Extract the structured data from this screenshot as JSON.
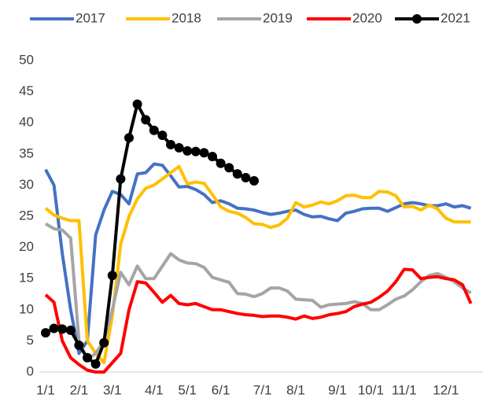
{
  "chart_data": {
    "type": "line",
    "categories": [
      "1/1",
      null,
      null,
      null,
      "2/1",
      null,
      null,
      null,
      "3/1",
      null,
      null,
      null,
      null,
      "4/1",
      null,
      null,
      null,
      "5/1",
      null,
      null,
      null,
      "6/1",
      null,
      null,
      null,
      null,
      "7/1",
      null,
      null,
      null,
      "8/1",
      null,
      null,
      null,
      null,
      "9/1",
      null,
      null,
      null,
      "10/1",
      null,
      null,
      null,
      "11/1",
      null,
      null,
      null,
      null,
      "12/1",
      null,
      null,
      null
    ],
    "ylim": [
      0,
      50
    ],
    "yticks": [
      0,
      5,
      10,
      15,
      20,
      25,
      30,
      35,
      40,
      45,
      50
    ],
    "grid": false,
    "legend": "top",
    "series": [
      {
        "name": "2017",
        "color": "#4472c4",
        "marker": false,
        "values": [
          32.5,
          30,
          19,
          10,
          3,
          5,
          22,
          26,
          29,
          28.5,
          27,
          31.8,
          32,
          33.4,
          33.2,
          31.5,
          29.7,
          29.8,
          29.3,
          28.5,
          27.2,
          27.5,
          27,
          26.3,
          26.2,
          26,
          25.6,
          25.3,
          25.5,
          25.8,
          26,
          25.3,
          24.9,
          25,
          24.6,
          24.3,
          25.5,
          25.8,
          26.2,
          26.3,
          26.3,
          25.8,
          26.4,
          27,
          27.2,
          27,
          26.7,
          26.7,
          27,
          26.5,
          26.7,
          26.3
        ]
      },
      {
        "name": "2018",
        "color": "#ffc000",
        "marker": false,
        "values": [
          26.3,
          25.2,
          24.7,
          24.3,
          24.3,
          5,
          3,
          1.5,
          9,
          20.5,
          25,
          27.8,
          29.5,
          30,
          31,
          32,
          33,
          30.2,
          30.5,
          30.3,
          28.5,
          26.5,
          25.8,
          25.5,
          24.8,
          23.8,
          23.7,
          23.2,
          23.6,
          24.7,
          27.2,
          26.5,
          26.8,
          27.3,
          27,
          27.5,
          28.3,
          28.4,
          28,
          28,
          29,
          28.9,
          28.3,
          26.5,
          26.6,
          26,
          26.8,
          26.2,
          24.7,
          24.1,
          24.1,
          24.1
        ]
      },
      {
        "name": "2019",
        "color": "#a5a5a5",
        "marker": false,
        "values": [
          23.8,
          23,
          22.8,
          21.5,
          5,
          2,
          3,
          5,
          10,
          16,
          14,
          17,
          15,
          15,
          17,
          19,
          18,
          17.5,
          17.4,
          16.8,
          15.2,
          14.8,
          14.4,
          12.6,
          12.5,
          12.1,
          12.6,
          13.5,
          13.5,
          13,
          11.7,
          11.6,
          11.5,
          10.4,
          10.8,
          10.9,
          11,
          11.3,
          11,
          10,
          10,
          10.8,
          11.7,
          12.2,
          13.2,
          14.5,
          15.5,
          15.8,
          15.2,
          14.5,
          13.5,
          12.7
        ]
      },
      {
        "name": "2020",
        "color": "#ff0000",
        "marker": false,
        "values": [
          12.4,
          11.2,
          5,
          2.3,
          1.2,
          0.3,
          0,
          0,
          1.5,
          3,
          10,
          14.5,
          14.3,
          12.8,
          11.2,
          12.3,
          11,
          10.8,
          11,
          10.5,
          10,
          10,
          9.7,
          9.4,
          9.2,
          9.1,
          8.9,
          9,
          9,
          8.8,
          8.5,
          9,
          8.6,
          8.8,
          9.2,
          9.4,
          9.7,
          10.5,
          10.9,
          11.2,
          12,
          13,
          14.5,
          16.5,
          16.4,
          15,
          15.2,
          15.3,
          15,
          14.8,
          14,
          11
        ]
      },
      {
        "name": "2021",
        "color": "#000000",
        "marker": true,
        "values": [
          6.3,
          7,
          6.9,
          6.7,
          4.3,
          2.3,
          1.3,
          4.7,
          15.5,
          31,
          37.6,
          43,
          40.5,
          38.8,
          38,
          36.5,
          36,
          35.5,
          35.4,
          35.2,
          34.6,
          33.5,
          32.8,
          31.8,
          31.2,
          30.7,
          null,
          null,
          null,
          null,
          null,
          null,
          null,
          null,
          null,
          null,
          null,
          null,
          null,
          null,
          null,
          null,
          null,
          null,
          null,
          null,
          null,
          null,
          null,
          null,
          null,
          null
        ]
      }
    ]
  }
}
